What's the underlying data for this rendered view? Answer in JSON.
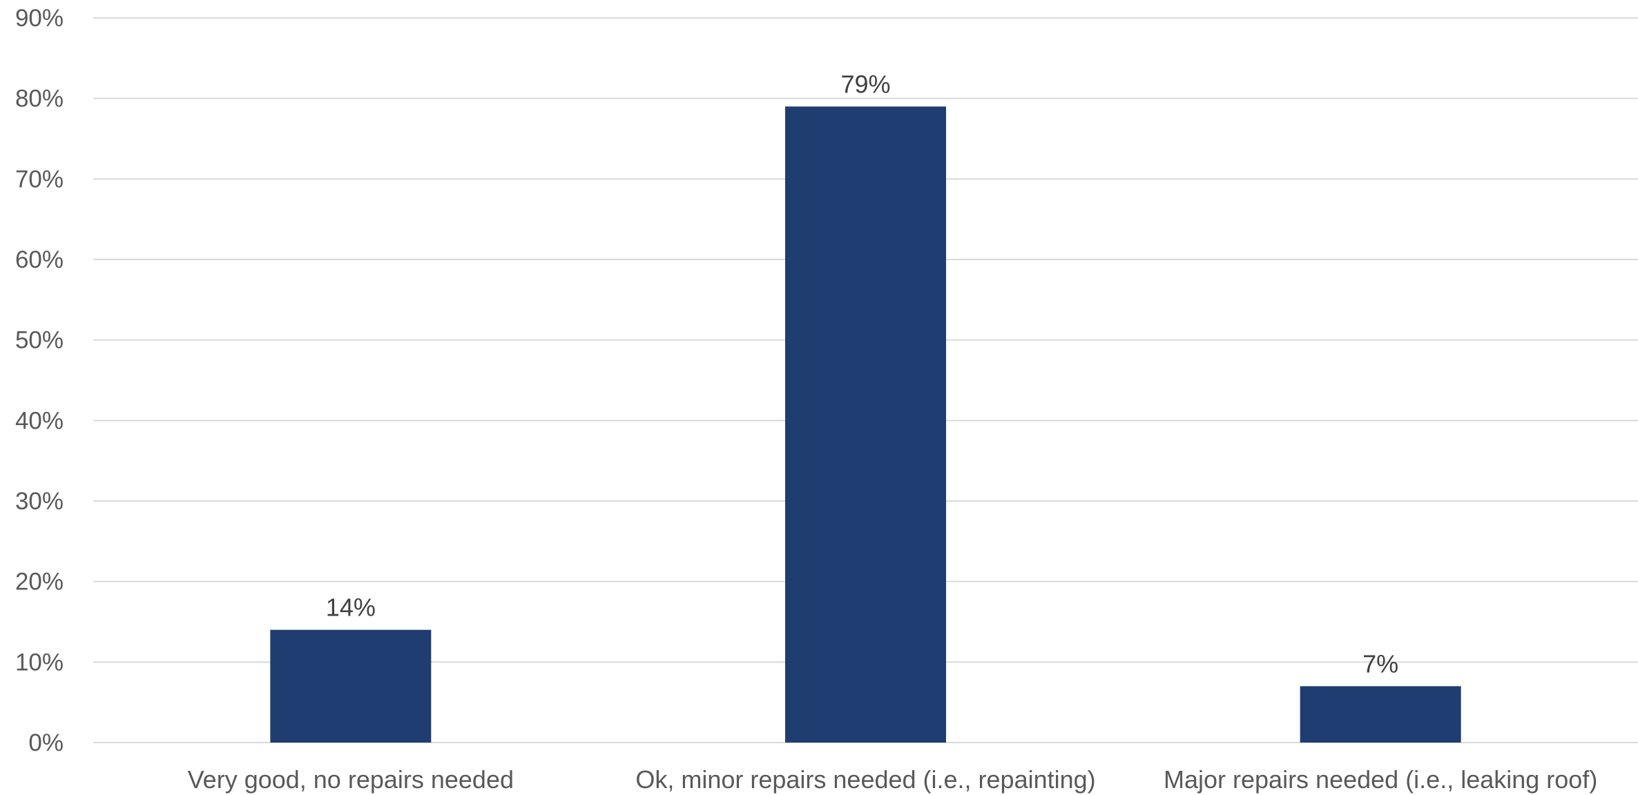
{
  "chart_data": {
    "type": "bar",
    "title": "",
    "xlabel": "",
    "ylabel": "",
    "categories": [
      "Very good, no repairs needed",
      "Ok, minor repairs needed (i.e., repainting)",
      "Major repairs needed (i.e., leaking roof)"
    ],
    "values": [
      14,
      79,
      7
    ],
    "data_labels": [
      "14%",
      "79%",
      "7%"
    ],
    "ylim": [
      0,
      90
    ],
    "yticks": [
      0,
      10,
      20,
      30,
      40,
      50,
      60,
      70,
      80,
      90
    ],
    "ytick_labels": [
      "0%",
      "10%",
      "20%",
      "30%",
      "40%",
      "50%",
      "60%",
      "70%",
      "80%",
      "90%"
    ],
    "grid": true,
    "legend": "none",
    "bar_color": "#1f3d70"
  }
}
